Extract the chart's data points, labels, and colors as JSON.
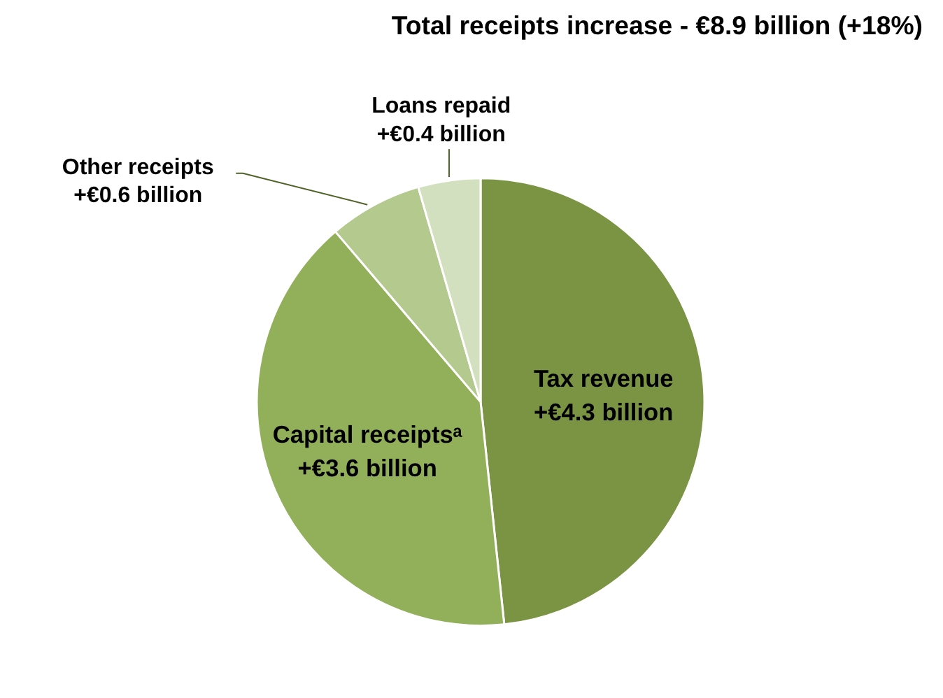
{
  "chart_data": {
    "type": "pie",
    "title": "Total receipts increase - €8.9 billion (+18%)",
    "categories": [
      "Tax revenue",
      "Capital receiptsᵃ",
      "Other receipts",
      "Loans repaid"
    ],
    "values": [
      4.3,
      3.6,
      0.6,
      0.4
    ],
    "value_labels": [
      "+€4.3 billion",
      "+€3.6 billion",
      "+€0.6 billion",
      "+€0.4 billion"
    ],
    "colors": [
      "#7a9444",
      "#92b05a",
      "#b3c98e",
      "#d3e0bf"
    ]
  }
}
